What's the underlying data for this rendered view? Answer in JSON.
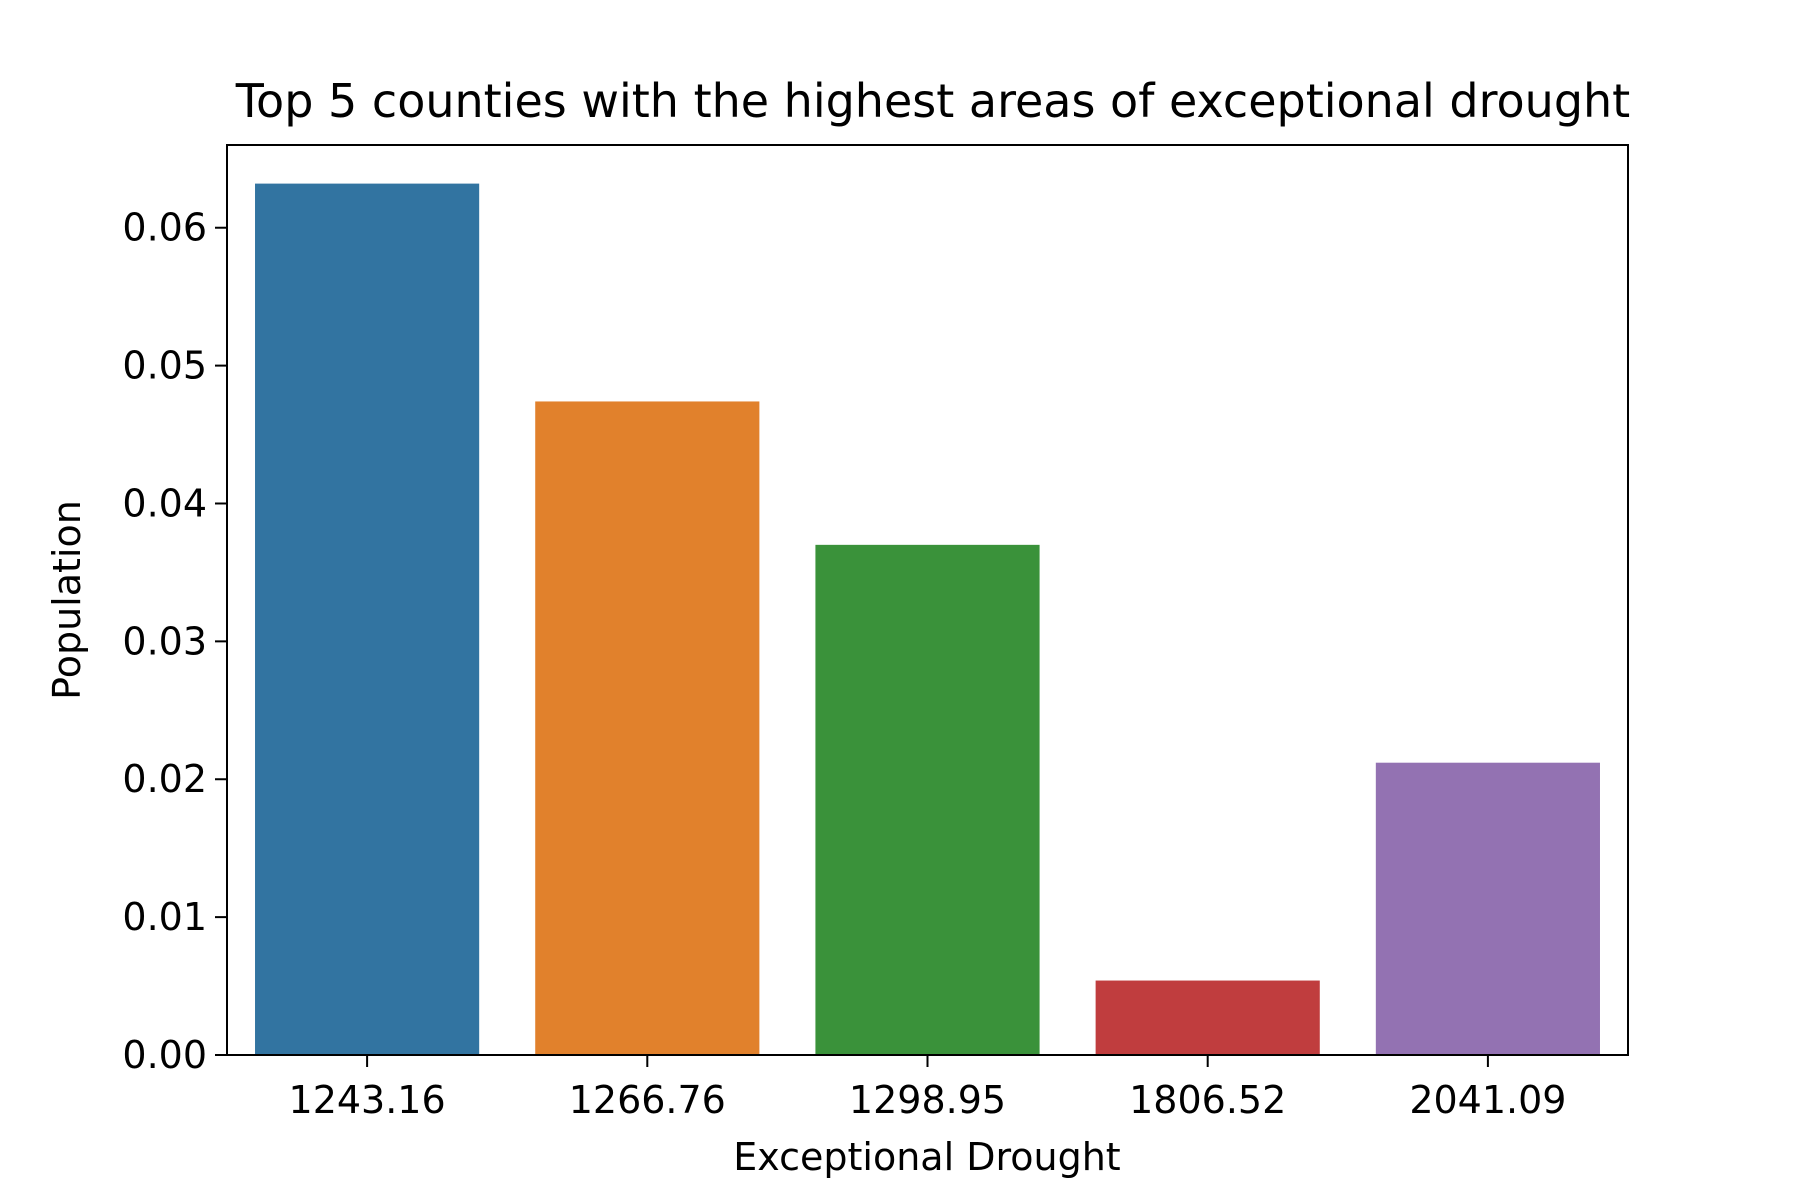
{
  "chart_data": {
    "type": "bar",
    "title": "Top 5 counties with the highest areas of exceptional drought",
    "xlabel": "Exceptional Drought",
    "ylabel": "Population",
    "categories": [
      "1243.16",
      "1266.76",
      "1298.95",
      "1806.52",
      "2041.09"
    ],
    "values": [
      0.0632,
      0.0474,
      0.037,
      0.0054,
      0.0212
    ],
    "colors": [
      "#3274a1",
      "#e1812c",
      "#3a923a",
      "#c03d3e",
      "#9372b2"
    ],
    "ylim": [
      0,
      0.066
    ],
    "yticks": [
      0,
      0.01,
      0.02,
      0.03,
      0.04,
      0.05,
      0.06
    ],
    "ytick_labels": [
      "0.00",
      "0.01",
      "0.02",
      "0.03",
      "0.04",
      "0.05",
      "0.06"
    ],
    "grid": false,
    "legend": "none"
  }
}
